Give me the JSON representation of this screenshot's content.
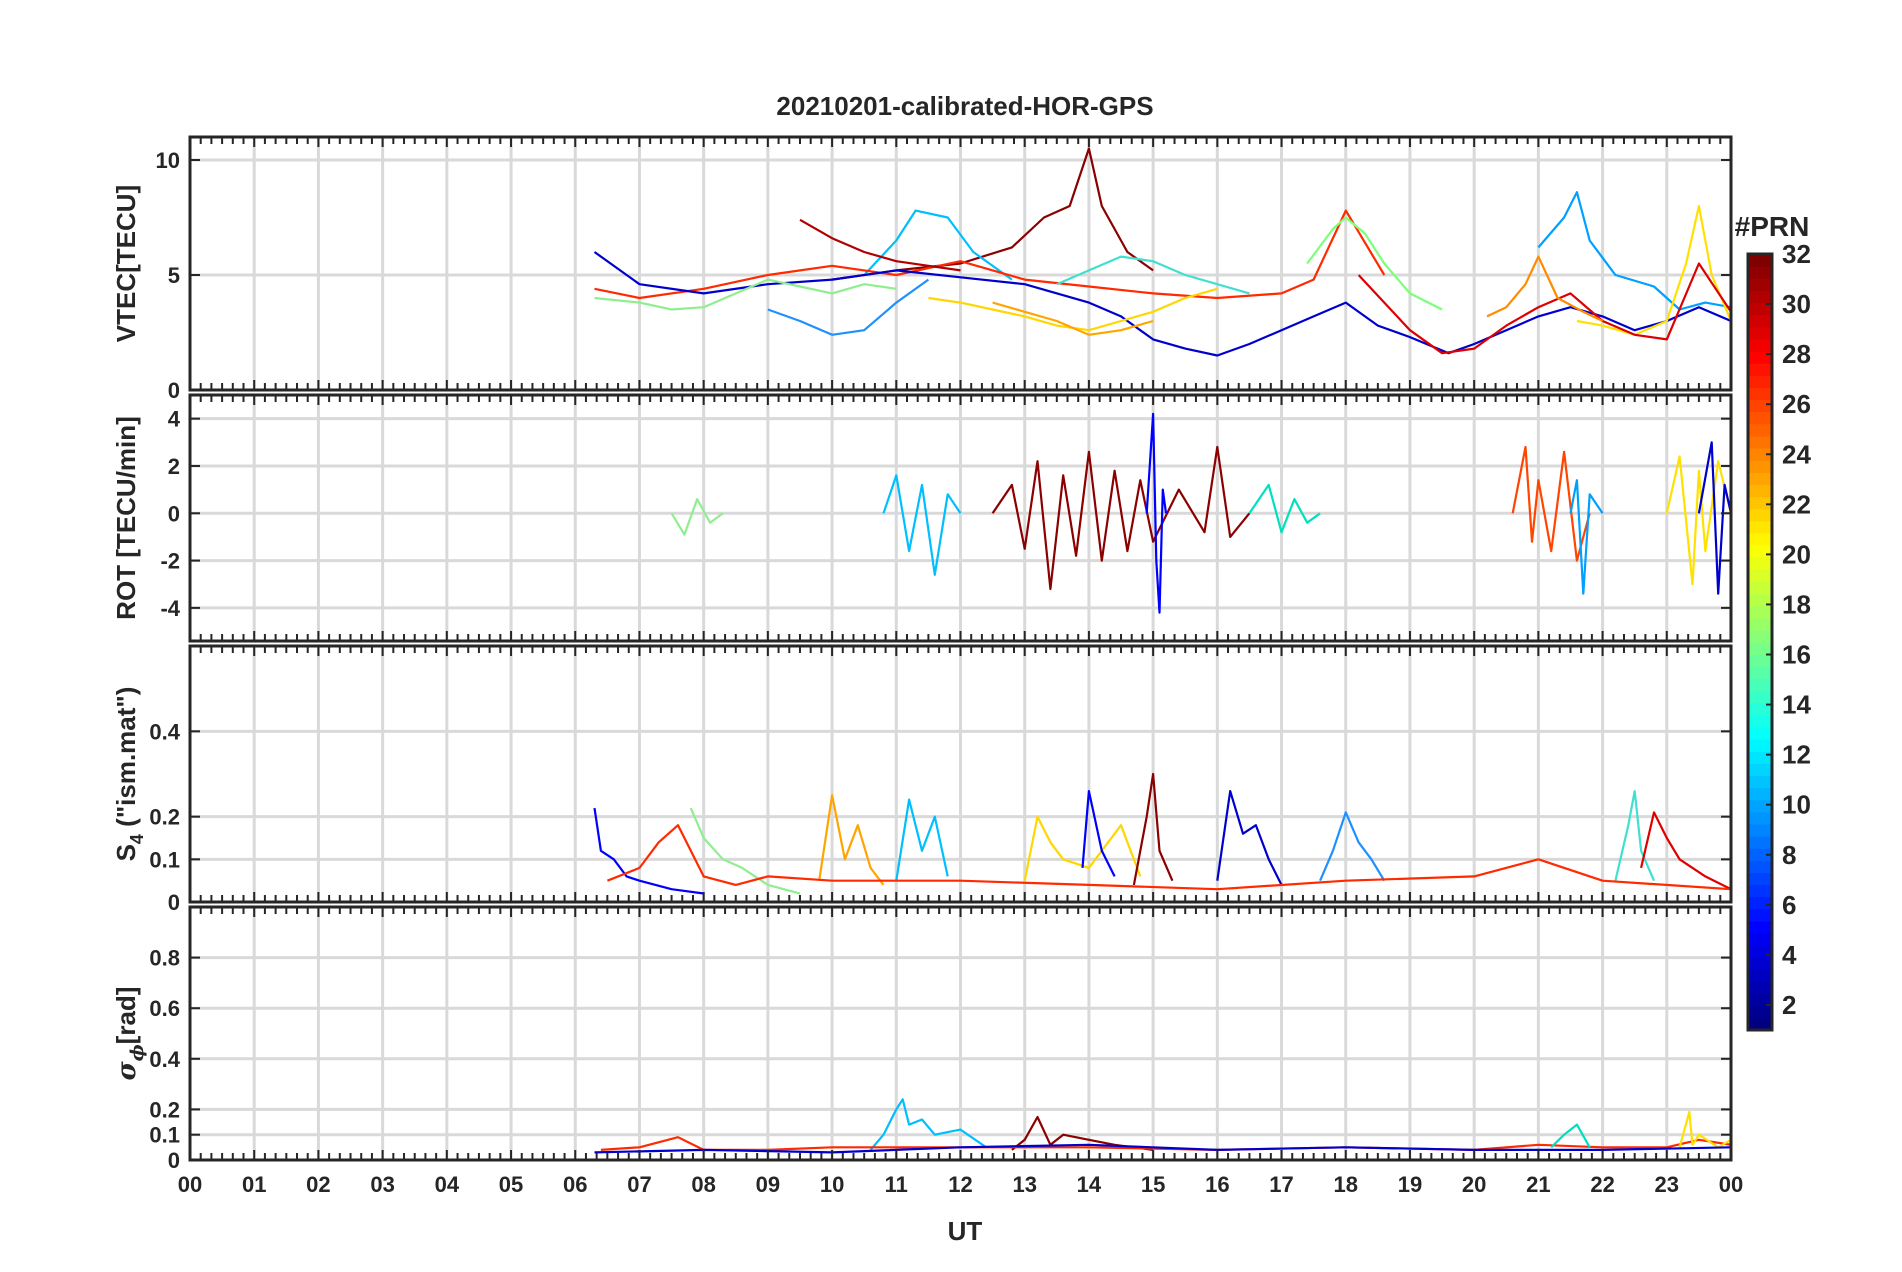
{
  "figure": {
    "title": "20210201-calibrated-HOR-GPS",
    "xlabel": "UT",
    "x_ticks": [
      "00",
      "01",
      "02",
      "03",
      "04",
      "05",
      "06",
      "07",
      "08",
      "09",
      "10",
      "11",
      "12",
      "13",
      "14",
      "15",
      "16",
      "17",
      "18",
      "19",
      "20",
      "21",
      "22",
      "23",
      "00"
    ]
  },
  "colorbar": {
    "label": "#PRN",
    "range": [
      1,
      32
    ],
    "ticks": [
      2,
      4,
      6,
      8,
      10,
      12,
      14,
      16,
      18,
      20,
      22,
      24,
      26,
      28,
      30,
      32
    ],
    "colormap": "jet"
  },
  "chart_data": [
    {
      "type": "line",
      "panel": "vtec",
      "ylabel": "VTEC[TECU]",
      "xlim": [
        0,
        24
      ],
      "ylim": [
        0,
        11
      ],
      "yticks": [
        0,
        5,
        10
      ],
      "series": [
        {
          "prn": 31,
          "color": "#8b0000",
          "x": [
            10.0,
            11.0,
            12.0,
            12.8,
            13.3,
            13.7,
            14.0,
            14.2,
            14.6,
            15.0
          ],
          "y": [
            4.8,
            5.2,
            5.5,
            6.2,
            7.5,
            8.0,
            10.5,
            8.0,
            6.0,
            5.2
          ]
        },
        {
          "prn": 11,
          "color": "#00bfff",
          "x": [
            10.5,
            11.0,
            11.3,
            11.8,
            12.2,
            12.8
          ],
          "y": [
            5.0,
            6.5,
            7.8,
            7.5,
            6.0,
            4.8
          ]
        },
        {
          "prn": 27,
          "color": "#ff2a00",
          "x": [
            6.3,
            7.0,
            8.0,
            9.0,
            10.0,
            11.0,
            12.0,
            13.0,
            14.0,
            15.0,
            16.0,
            17.0,
            17.5,
            18.0,
            18.6
          ],
          "y": [
            4.4,
            4.0,
            4.4,
            5.0,
            5.4,
            5.0,
            5.6,
            4.8,
            4.5,
            4.2,
            4.0,
            4.2,
            4.8,
            7.8,
            5.0
          ]
        },
        {
          "prn": 18,
          "color": "#7cff79",
          "x": [
            17.4,
            17.8,
            18.0,
            18.3,
            18.6,
            19.0,
            19.5
          ],
          "y": [
            5.5,
            7.0,
            7.5,
            6.8,
            5.5,
            4.2,
            3.5
          ]
        },
        {
          "prn": 2,
          "color": "#0000cd",
          "x": [
            6.3,
            7.0,
            8.0,
            9.0,
            10.0,
            11.0,
            12.0,
            13.0,
            14.0,
            14.5,
            15.0,
            15.5,
            16.0,
            16.5,
            17.0,
            17.5,
            18.0,
            18.5,
            19.0,
            19.6,
            20.0,
            20.5,
            21.0,
            21.5,
            22.0,
            22.5,
            23.0,
            23.5,
            24.0
          ],
          "y": [
            6.0,
            4.6,
            4.2,
            4.6,
            4.8,
            5.2,
            4.9,
            4.6,
            3.8,
            3.2,
            2.2,
            1.8,
            1.5,
            2.0,
            2.6,
            3.2,
            3.8,
            2.8,
            2.3,
            1.6,
            2.0,
            2.6,
            3.2,
            3.6,
            3.2,
            2.6,
            3.0,
            3.6,
            3.0
          ]
        },
        {
          "prn": 9,
          "color": "#1e90ff",
          "x": [
            9.0,
            9.5,
            10.0,
            10.5,
            11.0,
            11.5
          ],
          "y": [
            3.5,
            3.0,
            2.4,
            2.6,
            3.8,
            4.8
          ]
        },
        {
          "prn": 21,
          "color": "#ffd700",
          "x": [
            11.5,
            12.0,
            12.5,
            13.0,
            13.5,
            14.0,
            14.5,
            15.0,
            15.5,
            16.0
          ],
          "y": [
            4.0,
            3.8,
            3.5,
            3.2,
            2.8,
            2.6,
            3.0,
            3.4,
            4.0,
            4.4
          ]
        },
        {
          "prn": 22,
          "color": "#ffa500",
          "x": [
            12.5,
            13.0,
            13.5,
            14.0,
            14.5,
            15.0
          ],
          "y": [
            3.8,
            3.4,
            3.0,
            2.4,
            2.6,
            3.0
          ]
        },
        {
          "prn": 30,
          "color": "#b00000",
          "x": [
            9.5,
            10.0,
            10.5,
            11.0,
            11.5,
            12.0
          ],
          "y": [
            7.4,
            6.6,
            6.0,
            5.6,
            5.4,
            5.2
          ]
        },
        {
          "prn": 16,
          "color": "#90ee90",
          "x": [
            6.3,
            7.0,
            7.5,
            8.0,
            8.5,
            9.0,
            9.5,
            10.0,
            10.5,
            11.0
          ],
          "y": [
            4.0,
            3.8,
            3.5,
            3.6,
            4.2,
            4.8,
            4.5,
            4.2,
            4.6,
            4.4
          ]
        },
        {
          "prn": 10,
          "color": "#00a0ff",
          "x": [
            21.0,
            21.4,
            21.6,
            21.8,
            22.2,
            22.8,
            23.2,
            23.6,
            24.0
          ],
          "y": [
            6.2,
            7.5,
            8.6,
            6.5,
            5.0,
            4.5,
            3.5,
            3.8,
            3.6
          ]
        },
        {
          "prn": 20,
          "color": "#ffe100",
          "x": [
            21.6,
            22.0,
            22.5,
            23.0,
            23.3,
            23.5,
            23.7,
            24.0
          ],
          "y": [
            3.0,
            2.8,
            2.4,
            3.0,
            5.5,
            8.0,
            5.0,
            3.0
          ]
        },
        {
          "prn": 29,
          "color": "#dc0000",
          "x": [
            18.2,
            18.6,
            19.0,
            19.5,
            20.0,
            20.5,
            21.0,
            21.5,
            22.0,
            22.5,
            23.0,
            23.5,
            24.0
          ],
          "y": [
            5.0,
            3.8,
            2.6,
            1.6,
            1.8,
            2.8,
            3.6,
            4.2,
            3.0,
            2.4,
            2.2,
            5.5,
            3.4
          ]
        },
        {
          "prn": 24,
          "color": "#ff8c00",
          "x": [
            20.2,
            20.5,
            20.8,
            21.0,
            21.3,
            21.7,
            22.0
          ],
          "y": [
            3.2,
            3.6,
            4.6,
            5.8,
            4.0,
            3.4,
            3.0
          ]
        },
        {
          "prn": 14,
          "color": "#40e0d0",
          "x": [
            13.5,
            14.0,
            14.5,
            15.0,
            15.5,
            16.0,
            16.5
          ],
          "y": [
            4.6,
            5.2,
            5.8,
            5.6,
            5.0,
            4.6,
            4.2
          ]
        }
      ]
    },
    {
      "type": "line",
      "panel": "rot",
      "ylabel": "ROT [TECU/min]",
      "xlim": [
        0,
        24
      ],
      "ylim": [
        -5.4,
        5
      ],
      "yticks": [
        -4,
        -2,
        0,
        2,
        4
      ],
      "series": [
        {
          "prn": 31,
          "color": "#8b0000",
          "x": [
            12.5,
            12.8,
            13.0,
            13.2,
            13.4,
            13.6,
            13.8,
            14.0,
            14.2,
            14.4,
            14.6,
            14.8,
            15.0,
            15.4,
            15.8,
            16.0,
            16.2,
            16.5
          ],
          "y": [
            0,
            1.2,
            -1.5,
            2.2,
            -3.2,
            1.6,
            -1.8,
            2.6,
            -2.0,
            1.8,
            -1.6,
            1.4,
            -1.2,
            1.0,
            -0.8,
            2.8,
            -1.0,
            0
          ]
        },
        {
          "prn": 5,
          "color": "#0000ff",
          "x": [
            14.9,
            15.0,
            15.05,
            15.1,
            15.15,
            15.2
          ],
          "y": [
            0,
            4.2,
            -2.0,
            -4.2,
            1.0,
            0
          ]
        },
        {
          "prn": 11,
          "color": "#00bfff",
          "x": [
            10.8,
            11.0,
            11.2,
            11.4,
            11.6,
            11.8,
            12.0
          ],
          "y": [
            0,
            1.6,
            -1.6,
            1.2,
            -2.6,
            0.8,
            0
          ]
        },
        {
          "prn": 26,
          "color": "#ff4500",
          "x": [
            20.6,
            20.8,
            20.9,
            21.0,
            21.2,
            21.4,
            21.6,
            21.8
          ],
          "y": [
            0,
            2.8,
            -1.2,
            1.4,
            -1.6,
            2.6,
            -2.0,
            0
          ]
        },
        {
          "prn": 10,
          "color": "#00a0ff",
          "x": [
            21.5,
            21.6,
            21.7,
            21.8,
            22.0
          ],
          "y": [
            0,
            1.4,
            -3.4,
            0.8,
            0
          ]
        },
        {
          "prn": 20,
          "color": "#ffe100",
          "x": [
            23.0,
            23.2,
            23.4,
            23.5,
            23.6,
            23.8,
            24.0
          ],
          "y": [
            0,
            2.4,
            -3.0,
            1.8,
            -1.6,
            2.2,
            0
          ]
        },
        {
          "prn": 2,
          "color": "#0000cd",
          "x": [
            23.5,
            23.7,
            23.8,
            23.9,
            24.0
          ],
          "y": [
            0,
            3.0,
            -3.4,
            1.2,
            0
          ]
        },
        {
          "prn": 16,
          "color": "#90ee90",
          "x": [
            7.5,
            7.7,
            7.9,
            8.1,
            8.3
          ],
          "y": [
            0,
            -0.9,
            0.6,
            -0.4,
            0
          ]
        },
        {
          "prn": 13,
          "color": "#00e0c0",
          "x": [
            16.5,
            16.8,
            17.0,
            17.2,
            17.4,
            17.6
          ],
          "y": [
            0,
            1.2,
            -0.8,
            0.6,
            -0.4,
            0
          ]
        }
      ]
    },
    {
      "type": "line",
      "panel": "s4",
      "ylabel": "S",
      "ylabel_sub": "4",
      "ylabel_tail": " (\"ism.mat\")",
      "xlim": [
        0,
        24
      ],
      "ylim": [
        0,
        0.6
      ],
      "yticks": [
        0,
        0.1,
        0.2,
        0.4
      ],
      "series": [
        {
          "prn": 3,
          "color": "#0000ff",
          "x": [
            6.3,
            6.4,
            6.6,
            6.8,
            7.0,
            7.5,
            8.0
          ],
          "y": [
            0.22,
            0.12,
            0.1,
            0.06,
            0.05,
            0.03,
            0.02
          ]
        },
        {
          "prn": 16,
          "color": "#90ee90",
          "x": [
            7.8,
            8.0,
            8.3,
            8.6,
            9.0,
            9.5
          ],
          "y": [
            0.22,
            0.15,
            0.1,
            0.08,
            0.04,
            0.02
          ]
        },
        {
          "prn": 22,
          "color": "#ffa500",
          "x": [
            9.8,
            10.0,
            10.2,
            10.4,
            10.6,
            10.8
          ],
          "y": [
            0.05,
            0.25,
            0.1,
            0.18,
            0.08,
            0.04
          ]
        },
        {
          "prn": 11,
          "color": "#00bfff",
          "x": [
            11.0,
            11.2,
            11.4,
            11.6,
            11.8
          ],
          "y": [
            0.05,
            0.24,
            0.12,
            0.2,
            0.06
          ]
        },
        {
          "prn": 21,
          "color": "#ffd700",
          "x": [
            13.0,
            13.2,
            13.4,
            13.6,
            14.0,
            14.5,
            14.8
          ],
          "y": [
            0.05,
            0.2,
            0.14,
            0.1,
            0.08,
            0.18,
            0.06
          ]
        },
        {
          "prn": 5,
          "color": "#0000ff",
          "x": [
            13.9,
            14.0,
            14.2,
            14.4
          ],
          "y": [
            0.08,
            0.26,
            0.12,
            0.06
          ]
        },
        {
          "prn": 31,
          "color": "#8b0000",
          "x": [
            14.7,
            14.9,
            15.0,
            15.1,
            15.3
          ],
          "y": [
            0.04,
            0.2,
            0.3,
            0.12,
            0.05
          ]
        },
        {
          "prn": 2,
          "color": "#0000cd",
          "x": [
            16.0,
            16.2,
            16.4,
            16.6,
            16.8,
            17.0
          ],
          "y": [
            0.05,
            0.26,
            0.16,
            0.18,
            0.1,
            0.04
          ]
        },
        {
          "prn": 9,
          "color": "#1e90ff",
          "x": [
            17.6,
            17.8,
            18.0,
            18.2,
            18.4,
            18.6
          ],
          "y": [
            0.05,
            0.12,
            0.21,
            0.14,
            0.1,
            0.05
          ]
        },
        {
          "prn": 14,
          "color": "#40e0d0",
          "x": [
            22.2,
            22.4,
            22.5,
            22.6,
            22.8
          ],
          "y": [
            0.05,
            0.18,
            0.26,
            0.12,
            0.05
          ]
        },
        {
          "prn": 28,
          "color": "#e00000",
          "x": [
            22.6,
            22.8,
            23.0,
            23.2,
            23.6,
            24.0
          ],
          "y": [
            0.08,
            0.21,
            0.15,
            0.1,
            0.06,
            0.03
          ]
        },
        {
          "prn": 27,
          "color": "#ff2a00",
          "x": [
            6.5,
            7.0,
            7.3,
            7.6,
            8.0,
            8.5,
            9.0,
            10.0,
            12.0,
            14.0,
            16.0,
            18.0,
            20.0,
            21.0,
            22.0,
            24.0
          ],
          "y": [
            0.05,
            0.08,
            0.14,
            0.18,
            0.06,
            0.04,
            0.06,
            0.05,
            0.05,
            0.04,
            0.03,
            0.05,
            0.06,
            0.1,
            0.05,
            0.03
          ]
        }
      ]
    },
    {
      "type": "line",
      "panel": "sigma_phi",
      "ylabel_sym": "σ",
      "ylabel_sub": "ϕ",
      "ylabel_tail": "[rad]",
      "xlim": [
        0,
        24
      ],
      "ylim": [
        0,
        1
      ],
      "yticks": [
        0,
        0.1,
        0.2,
        0.4,
        0.6,
        0.8
      ],
      "series": [
        {
          "prn": 11,
          "color": "#00bfff",
          "x": [
            10.6,
            10.8,
            11.0,
            11.1,
            11.2,
            11.4,
            11.6,
            12.0,
            12.4
          ],
          "y": [
            0.04,
            0.1,
            0.2,
            0.24,
            0.14,
            0.16,
            0.1,
            0.12,
            0.05
          ]
        },
        {
          "prn": 31,
          "color": "#8b0000",
          "x": [
            12.8,
            13.0,
            13.2,
            13.4,
            13.6,
            14.0,
            14.4,
            15.0
          ],
          "y": [
            0.04,
            0.08,
            0.17,
            0.06,
            0.1,
            0.08,
            0.06,
            0.04
          ]
        },
        {
          "prn": 27,
          "color": "#ff2a00",
          "x": [
            6.4,
            7.0,
            7.6,
            8.0,
            9.0,
            10.0,
            12.0,
            14.0,
            16.0,
            18.0,
            20.0,
            21.0,
            22.0,
            23.0,
            23.5,
            24.0
          ],
          "y": [
            0.04,
            0.05,
            0.09,
            0.04,
            0.04,
            0.05,
            0.05,
            0.05,
            0.04,
            0.05,
            0.04,
            0.06,
            0.05,
            0.05,
            0.08,
            0.06
          ]
        },
        {
          "prn": 20,
          "color": "#ffe100",
          "x": [
            23.2,
            23.35,
            23.4,
            23.5,
            23.8,
            24.0
          ],
          "y": [
            0.05,
            0.19,
            0.06,
            0.1,
            0.05,
            0.08
          ]
        },
        {
          "prn": 13,
          "color": "#00e0c0",
          "x": [
            21.2,
            21.4,
            21.6,
            21.8
          ],
          "y": [
            0.05,
            0.1,
            0.14,
            0.05
          ]
        },
        {
          "prn": 2,
          "color": "#0000cd",
          "x": [
            6.3,
            8.0,
            10.0,
            12.0,
            14.0,
            16.0,
            18.0,
            20.0,
            22.0,
            24.0
          ],
          "y": [
            0.03,
            0.04,
            0.03,
            0.05,
            0.06,
            0.04,
            0.05,
            0.04,
            0.04,
            0.05
          ]
        }
      ]
    }
  ]
}
